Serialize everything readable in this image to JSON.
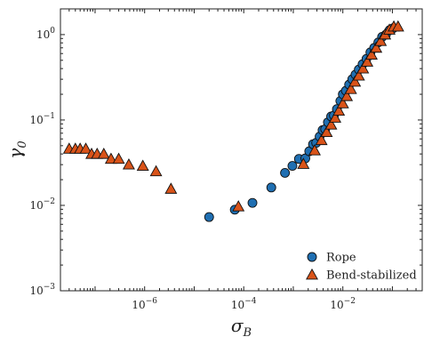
{
  "chart_data": {
    "type": "scatter",
    "xlabel": "σ_B",
    "ylabel": "γ_0",
    "xscale": "log",
    "yscale": "log",
    "xlim": [
      2e-08,
      0.4
    ],
    "ylim": [
      0.001,
      2
    ],
    "x_ticks": [
      {
        "value": 1e-06,
        "label": "10^-6"
      },
      {
        "value": 0.0001,
        "label": "10^-4"
      },
      {
        "value": 0.01,
        "label": "10^-2"
      }
    ],
    "y_ticks": [
      {
        "value": 0.001,
        "label": "10^-3"
      },
      {
        "value": 0.01,
        "label": "10^-2"
      },
      {
        "value": 0.1,
        "label": "10^-1"
      },
      {
        "value": 1,
        "label": "10^0"
      }
    ],
    "legend_position": "bottom-right",
    "series": [
      {
        "name": "Rope",
        "marker": "circle",
        "color": "#1f6fb2",
        "points": [
          [
            2e-05,
            0.0073
          ],
          [
            6.6e-05,
            0.0089
          ],
          [
            0.00015,
            0.0107
          ],
          [
            0.00036,
            0.0162
          ],
          [
            0.00068,
            0.024
          ],
          [
            0.00096,
            0.029
          ],
          [
            0.0013,
            0.035
          ],
          [
            0.00175,
            0.0355
          ],
          [
            0.0021,
            0.043
          ],
          [
            0.0025,
            0.052
          ],
          [
            0.0029,
            0.054
          ],
          [
            0.0034,
            0.064
          ],
          [
            0.0039,
            0.076
          ],
          [
            0.0044,
            0.078
          ],
          [
            0.005,
            0.094
          ],
          [
            0.0058,
            0.11
          ],
          [
            0.0066,
            0.113
          ],
          [
            0.0076,
            0.134
          ],
          [
            0.0089,
            0.167
          ],
          [
            0.01,
            0.2
          ],
          [
            0.0115,
            0.22
          ],
          [
            0.0134,
            0.26
          ],
          [
            0.0155,
            0.3
          ],
          [
            0.018,
            0.34
          ],
          [
            0.021,
            0.39
          ],
          [
            0.025,
            0.45
          ],
          [
            0.03,
            0.52
          ],
          [
            0.036,
            0.62
          ],
          [
            0.043,
            0.7
          ],
          [
            0.052,
            0.81
          ],
          [
            0.062,
            0.94
          ],
          [
            0.074,
            1.0
          ],
          [
            0.088,
            1.13
          ],
          [
            0.104,
            1.19
          ]
        ]
      },
      {
        "name": "Bend-stabilized",
        "marker": "triangle",
        "color": "#d95319",
        "points": [
          [
            3e-08,
            0.046
          ],
          [
            4e-08,
            0.046
          ],
          [
            5e-08,
            0.046
          ],
          [
            6.5e-08,
            0.046
          ],
          [
            8.5e-08,
            0.04
          ],
          [
            1.1e-07,
            0.04
          ],
          [
            1.5e-07,
            0.04
          ],
          [
            2.1e-07,
            0.035
          ],
          [
            3e-07,
            0.035
          ],
          [
            4.8e-07,
            0.03
          ],
          [
            9.2e-07,
            0.029
          ],
          [
            1.7e-06,
            0.025
          ],
          [
            3.4e-06,
            0.0156
          ],
          [
            7.8e-05,
            0.0097
          ],
          [
            0.0016,
            0.0305
          ],
          [
            0.0027,
            0.044
          ],
          [
            0.0037,
            0.058
          ],
          [
            0.0047,
            0.072
          ],
          [
            0.0058,
            0.088
          ],
          [
            0.007,
            0.106
          ],
          [
            0.0083,
            0.128
          ],
          [
            0.01,
            0.156
          ],
          [
            0.012,
            0.19
          ],
          [
            0.0145,
            0.23
          ],
          [
            0.0175,
            0.28
          ],
          [
            0.021,
            0.33
          ],
          [
            0.0255,
            0.4
          ],
          [
            0.031,
            0.48
          ],
          [
            0.038,
            0.58
          ],
          [
            0.047,
            0.7
          ],
          [
            0.058,
            0.84
          ],
          [
            0.071,
            1.0
          ],
          [
            0.087,
            1.14
          ],
          [
            0.107,
            1.24
          ],
          [
            0.13,
            1.24
          ]
        ]
      }
    ]
  }
}
